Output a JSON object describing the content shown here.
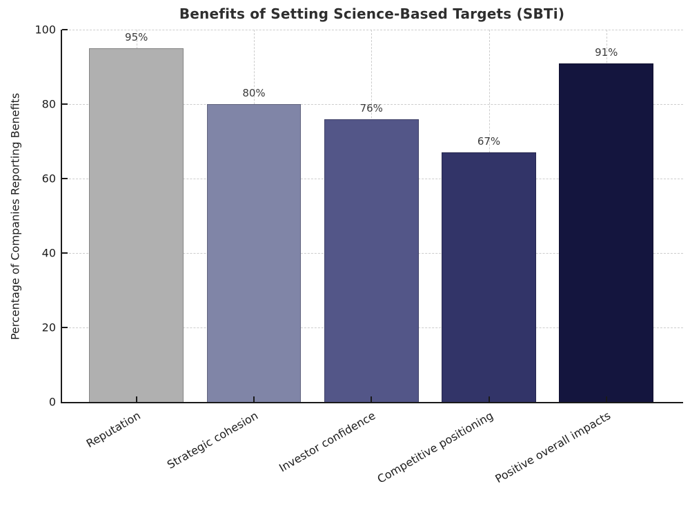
{
  "figure": {
    "title": "Benefits of Setting Science-Based Targets (SBTi)"
  },
  "chart_data": {
    "type": "bar",
    "title": "Benefits of Setting Science-Based Targets (SBTi)",
    "xlabel": "",
    "ylabel": "Percentage of Companies Reporting Benefits",
    "categories": [
      "Reputation",
      "Strategic cohesion",
      "Investor confidence",
      "Competitive positioning",
      "Positive overall impacts"
    ],
    "values": [
      95,
      80,
      76,
      67,
      91
    ],
    "value_labels": [
      "95%",
      "80%",
      "76%",
      "67%",
      "91%"
    ],
    "bar_colors": [
      "#b0b0b0",
      "#8085a7",
      "#535688",
      "#323468",
      "#14153e"
    ],
    "ylim": [
      0,
      100
    ],
    "yticks": [
      0,
      20,
      40,
      60,
      80,
      100
    ],
    "grid": "dashed gridlines on both axes",
    "gridline_color": "#cccccc",
    "legend": "none",
    "category_label_rotation_deg": 30
  }
}
